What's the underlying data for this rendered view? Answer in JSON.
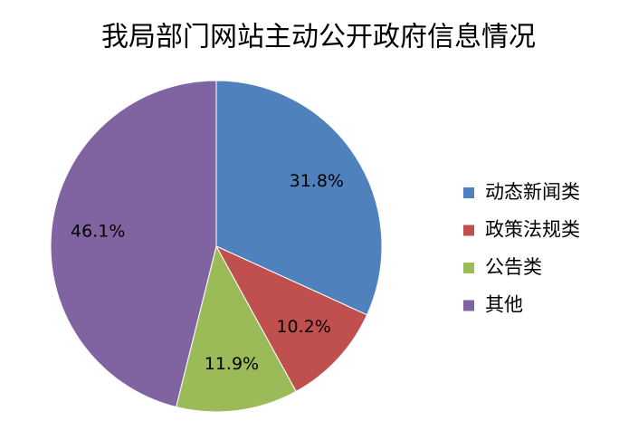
{
  "chart_data": {
    "type": "pie",
    "title": "我局部门网站主动公开政府信息情况",
    "categories": [
      "动态新闻类",
      "政策法规类",
      "公告类",
      "其他"
    ],
    "values": [
      31.8,
      10.2,
      11.9,
      46.1
    ],
    "value_labels": [
      "31.8%",
      "10.2%",
      "11.9%",
      "46.1%"
    ],
    "colors": [
      "#4f81bd",
      "#c0504d",
      "#9bbb59",
      "#8064a2"
    ],
    "legend": "right"
  }
}
